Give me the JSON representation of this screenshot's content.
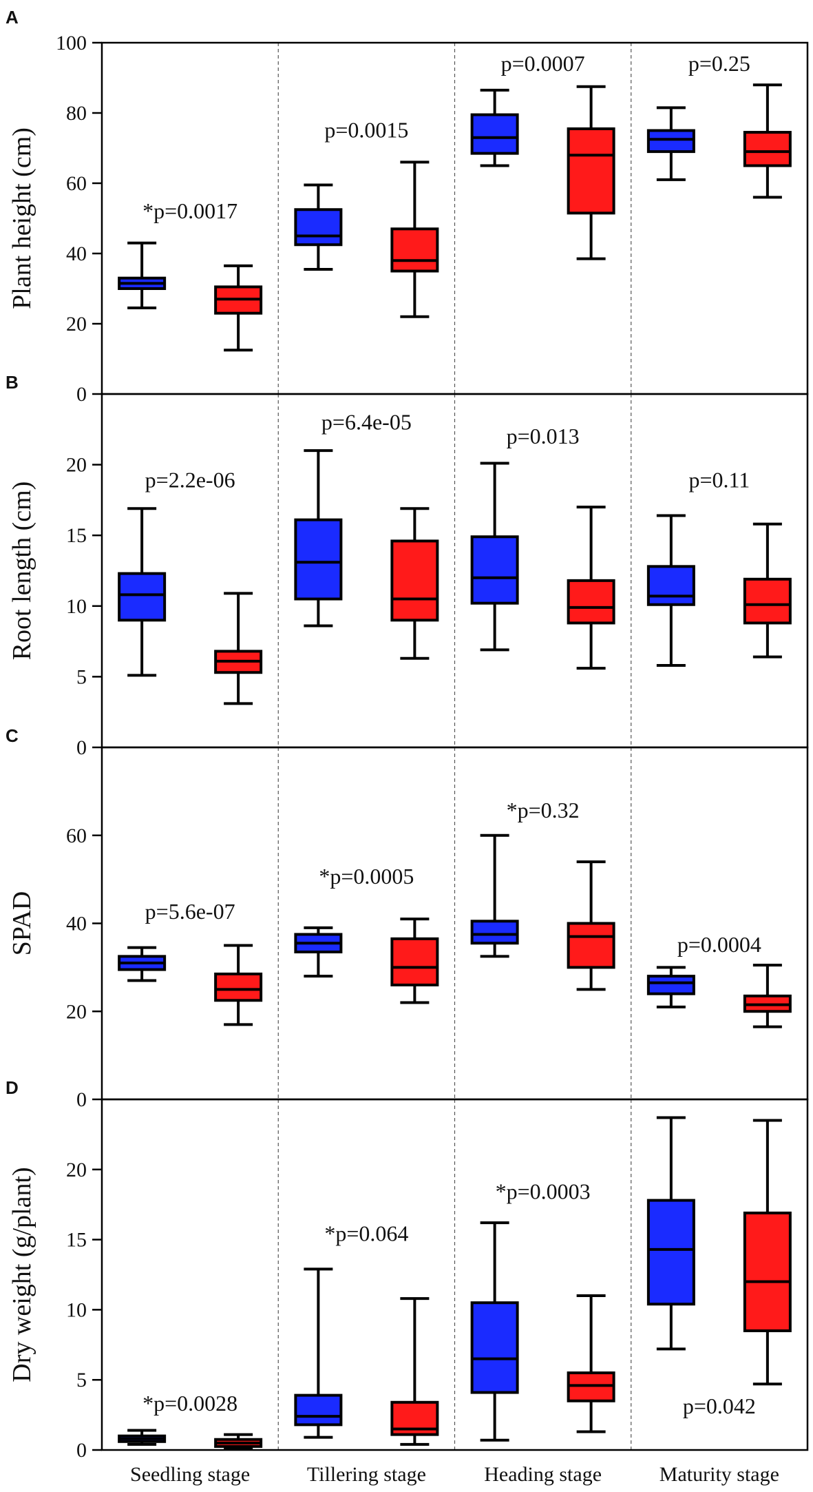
{
  "chart_data": [
    {
      "type": "boxplot",
      "panel": "A",
      "ylabel": "Plant height  (cm)",
      "ylim": [
        0,
        100
      ],
      "yticks": [
        0,
        20,
        40,
        60,
        80,
        100
      ],
      "categories": [
        "Seedling stage",
        "Tillering stage",
        "Heading stage",
        "Maturity stage"
      ],
      "series": [
        {
          "name": "blue",
          "color": "#1a2bff",
          "boxes": [
            {
              "min": 24.5,
              "q1": 30,
              "median": 31.5,
              "q3": 33,
              "max": 43
            },
            {
              "min": 35.5,
              "q1": 42.5,
              "median": 45,
              "q3": 52.5,
              "max": 59.5
            },
            {
              "min": 65,
              "q1": 68.5,
              "median": 73,
              "q3": 79.5,
              "max": 86.5
            },
            {
              "min": 61,
              "q1": 69,
              "median": 72.5,
              "q3": 75,
              "max": 81.5
            }
          ]
        },
        {
          "name": "red",
          "color": "#ff1a1a",
          "boxes": [
            {
              "min": 12.5,
              "q1": 23,
              "median": 27,
              "q3": 30.5,
              "max": 36.5
            },
            {
              "min": 22,
              "q1": 35,
              "median": 38,
              "q3": 47,
              "max": 66
            },
            {
              "min": 38.5,
              "q1": 51.5,
              "median": 68,
              "q3": 75.5,
              "max": 87.5
            },
            {
              "min": 56,
              "q1": 65,
              "median": 69,
              "q3": 74.5,
              "max": 88
            }
          ]
        }
      ],
      "annotations": [
        {
          "text": "*p=0.0017",
          "category": 0,
          "y": 50
        },
        {
          "text": "p=0.0015",
          "category": 1,
          "y": 73
        },
        {
          "text": "p=0.0007",
          "category": 2,
          "y": 92
        },
        {
          "text": "p=0.25",
          "category": 3,
          "y": 92
        }
      ]
    },
    {
      "type": "boxplot",
      "panel": "B",
      "ylabel": "Root length  (cm)",
      "ylim": [
        0,
        25
      ],
      "yticks": [
        0,
        5,
        10,
        15,
        20
      ],
      "categories": [
        "Seedling stage",
        "Tillering stage",
        "Heading stage",
        "Maturity stage"
      ],
      "series": [
        {
          "name": "blue",
          "color": "#1a2bff",
          "boxes": [
            {
              "min": 5.1,
              "q1": 9,
              "median": 10.8,
              "q3": 12.3,
              "max": 16.9
            },
            {
              "min": 8.6,
              "q1": 10.5,
              "median": 13.1,
              "q3": 16.1,
              "max": 21
            },
            {
              "min": 6.9,
              "q1": 10.2,
              "median": 12,
              "q3": 14.9,
              "max": 20.1
            },
            {
              "min": 5.8,
              "q1": 10.1,
              "median": 10.7,
              "q3": 12.8,
              "max": 16.4
            }
          ]
        },
        {
          "name": "red",
          "color": "#ff1a1a",
          "boxes": [
            {
              "min": 3.1,
              "q1": 5.3,
              "median": 6.1,
              "q3": 6.8,
              "max": 10.9
            },
            {
              "min": 6.3,
              "q1": 9,
              "median": 10.5,
              "q3": 14.6,
              "max": 16.9
            },
            {
              "min": 5.6,
              "q1": 8.8,
              "median": 9.9,
              "q3": 11.8,
              "max": 17
            },
            {
              "min": 6.4,
              "q1": 8.8,
              "median": 10.1,
              "q3": 11.9,
              "max": 15.8
            }
          ]
        }
      ],
      "annotations": [
        {
          "text": "p=2.2e-06",
          "category": 0,
          "y": 18.4
        },
        {
          "text": "p=6.4e-05",
          "category": 1,
          "y": 22.5
        },
        {
          "text": "p=0.013",
          "category": 2,
          "y": 21.5
        },
        {
          "text": "p=0.11",
          "category": 3,
          "y": 18.4
        }
      ]
    },
    {
      "type": "boxplot",
      "panel": "C",
      "ylabel": "SPAD",
      "ylim": [
        0,
        80
      ],
      "yticks": [
        0,
        20,
        40,
        60
      ],
      "categories": [
        "Seedling stage",
        "Tillering stage",
        "Heading stage",
        "Maturity stage"
      ],
      "series": [
        {
          "name": "blue",
          "color": "#1a2bff",
          "boxes": [
            {
              "min": 27,
              "q1": 29.5,
              "median": 31,
              "q3": 32.5,
              "max": 34.5
            },
            {
              "min": 28,
              "q1": 33.5,
              "median": 35.5,
              "q3": 37.5,
              "max": 39
            },
            {
              "min": 32.5,
              "q1": 35.5,
              "median": 37.5,
              "q3": 40.5,
              "max": 60
            },
            {
              "min": 21,
              "q1": 24,
              "median": 26.5,
              "q3": 28,
              "max": 30
            }
          ]
        },
        {
          "name": "red",
          "color": "#ff1a1a",
          "boxes": [
            {
              "min": 17,
              "q1": 22.5,
              "median": 25,
              "q3": 28.5,
              "max": 35
            },
            {
              "min": 22,
              "q1": 26,
              "median": 30,
              "q3": 36.5,
              "max": 41
            },
            {
              "min": 25,
              "q1": 30,
              "median": 37,
              "q3": 40,
              "max": 54
            },
            {
              "min": 16.5,
              "q1": 20,
              "median": 21.5,
              "q3": 23.5,
              "max": 30.5
            }
          ]
        }
      ],
      "annotations": [
        {
          "text": "p=5.6e-07",
          "category": 0,
          "y": 41
        },
        {
          "text": "*p=0.0005",
          "category": 1,
          "y": 49
        },
        {
          "text": "*p=0.32",
          "category": 2,
          "y": 64
        },
        {
          "text": "p=0.0004",
          "category": 3,
          "y": 33.5
        }
      ]
    },
    {
      "type": "boxplot",
      "panel": "D",
      "ylabel": "Dry weight (g/plant)",
      "ylim": [
        0,
        25
      ],
      "yticks": [
        0,
        5,
        10,
        15,
        20
      ],
      "categories": [
        "Seedling stage",
        "Tillering stage",
        "Heading stage",
        "Maturity stage"
      ],
      "series": [
        {
          "name": "blue",
          "color": "#1a2bff",
          "boxes": [
            {
              "min": 0.4,
              "q1": 0.6,
              "median": 0.8,
              "q3": 1.0,
              "max": 1.4
            },
            {
              "min": 0.9,
              "q1": 1.8,
              "median": 2.4,
              "q3": 3.9,
              "max": 12.9
            },
            {
              "min": 0.7,
              "q1": 4.1,
              "median": 6.5,
              "q3": 10.5,
              "max": 16.2
            },
            {
              "min": 7.2,
              "q1": 10.4,
              "median": 14.3,
              "q3": 17.8,
              "max": 23.7
            }
          ]
        },
        {
          "name": "red",
          "color": "#ff1a1a",
          "boxes": [
            {
              "min": 0.15,
              "q1": 0.25,
              "median": 0.5,
              "q3": 0.75,
              "max": 1.1
            },
            {
              "min": 0.4,
              "q1": 1.1,
              "median": 1.5,
              "q3": 3.4,
              "max": 10.8
            },
            {
              "min": 1.3,
              "q1": 3.5,
              "median": 4.6,
              "q3": 5.5,
              "max": 11
            },
            {
              "min": 4.7,
              "q1": 8.5,
              "median": 12,
              "q3": 16.9,
              "max": 23.5
            }
          ]
        }
      ],
      "annotations": [
        {
          "text": "*p=0.0028",
          "category": 0,
          "y": 2.8
        },
        {
          "text": "*p=0.064",
          "category": 1,
          "y": 14.9
        },
        {
          "text": "*p=0.0003",
          "category": 2,
          "y": 17.9
        },
        {
          "text": "p=0.042",
          "category": 3,
          "y": 2.6
        }
      ]
    }
  ],
  "xlabels": [
    "Seedling stage",
    "Tillering stage",
    "Heading stage",
    "Maturity stage"
  ]
}
